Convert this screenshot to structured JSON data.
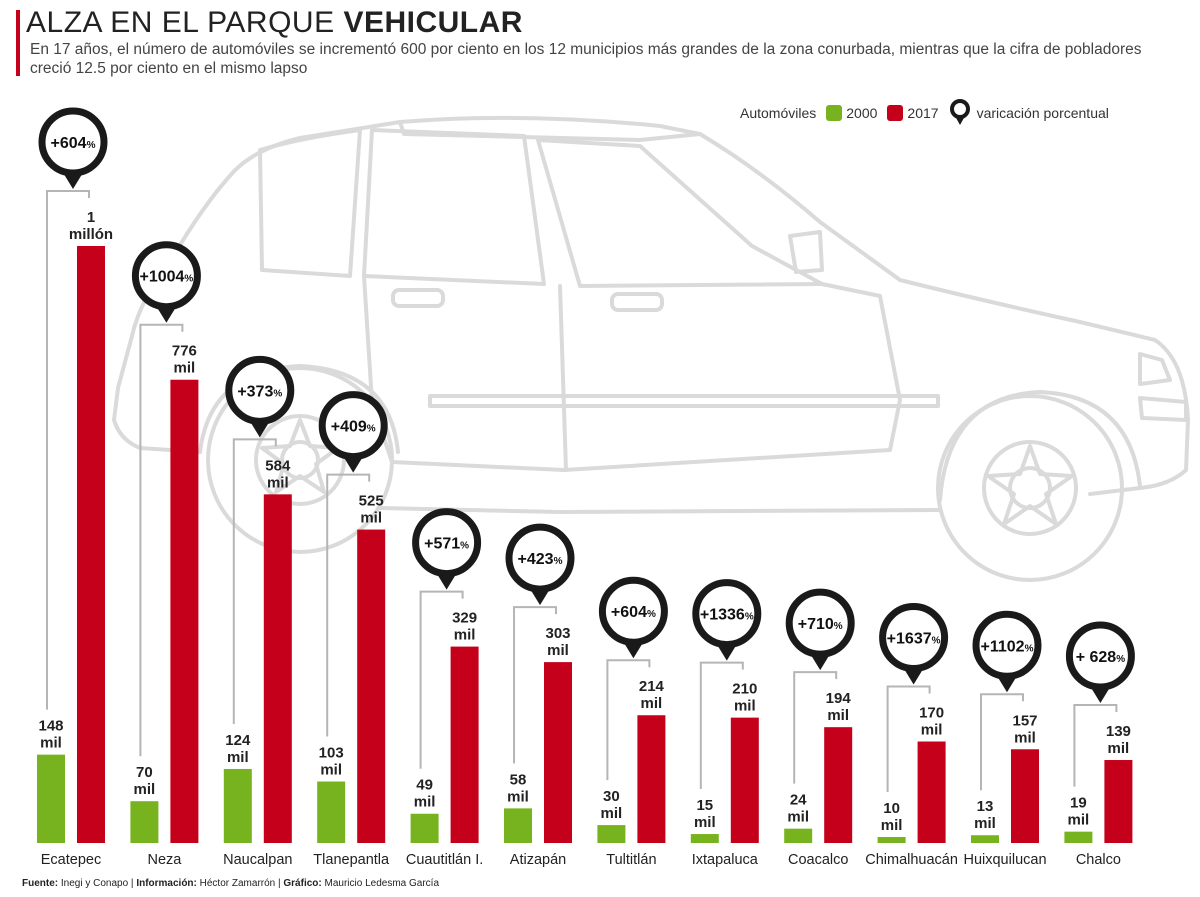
{
  "header": {
    "title_light": "ALZA EN EL PARQUE ",
    "title_bold": "VEHICULAR",
    "subtitle": "En 17 años, el número de automóviles se incrementó 600 por ciento en los 12 municipios más grandes de la zona conurbada, mientras que la cifra de pobladores creció 12.5 por ciento en el mismo lapso"
  },
  "legend": {
    "prefix": "Automóviles",
    "item_2000": "2000",
    "item_2017": "2017",
    "item_variation": "varicación porcentual"
  },
  "footer": {
    "source_label": "Fuente:",
    "source_text": " Inegi y Conapo | ",
    "info_label": "Información:",
    "info_text": " Héctor Zamarrón | ",
    "graphic_label": "Gráfico:",
    "graphic_text": " Mauricio Ledesma García"
  },
  "colors": {
    "green": "#77b31e",
    "red": "#c4001a",
    "pin": "#1a1a1a",
    "car": "#dadada"
  },
  "chart_data": {
    "type": "bar",
    "title": "ALZA EN EL PARQUE VEHICULAR",
    "categories": [
      "Ecatepec",
      "Neza",
      "Naucalpan",
      "Tlanepantla",
      "Cuautitlán I.",
      "Atizapán",
      "Tultitlán",
      "Ixtapaluca",
      "Coacalco",
      "Chimalhuacán",
      "Huixquilucan",
      "Chalco"
    ],
    "series": [
      {
        "name": "2000",
        "values": [
          148,
          70,
          124,
          103,
          49,
          58,
          30,
          15,
          24,
          10,
          13,
          19
        ],
        "labels": [
          [
            "148",
            "mil"
          ],
          [
            "70",
            "mil"
          ],
          [
            "124",
            "mil"
          ],
          [
            "103",
            "mil"
          ],
          [
            "49",
            "mil"
          ],
          [
            "58",
            "mil"
          ],
          [
            "30",
            "mil"
          ],
          [
            "15",
            "mil"
          ],
          [
            "24",
            "mil"
          ],
          [
            "10",
            "mil"
          ],
          [
            "13",
            "mil"
          ],
          [
            "19",
            "mil"
          ]
        ]
      },
      {
        "name": "2017",
        "values": [
          1000,
          776,
          584,
          525,
          329,
          303,
          214,
          210,
          194,
          170,
          157,
          139
        ],
        "labels": [
          [
            "1",
            "millón"
          ],
          [
            "776",
            "mil"
          ],
          [
            "584",
            "mil"
          ],
          [
            "525",
            "mil"
          ],
          [
            "329",
            "mil"
          ],
          [
            "303",
            "mil"
          ],
          [
            "214",
            "mil"
          ],
          [
            "210",
            "mil"
          ],
          [
            "194",
            "mil"
          ],
          [
            "170",
            "mil"
          ],
          [
            "157",
            "mil"
          ],
          [
            "139",
            "mil"
          ]
        ]
      }
    ],
    "variation": [
      [
        "+604",
        "%"
      ],
      [
        "+1004",
        "%"
      ],
      [
        "+373",
        "%"
      ],
      [
        "+409",
        "%"
      ],
      [
        "+571",
        "%"
      ],
      [
        "+423",
        "%"
      ],
      [
        "+604",
        "%"
      ],
      [
        "+1336",
        "%"
      ],
      [
        "+710",
        "%"
      ],
      [
        "+1637",
        "%"
      ],
      [
        "+1102",
        "%"
      ],
      [
        "+ 628",
        "%"
      ]
    ],
    "unit": "miles de automóviles",
    "ylim": [
      0,
      1000
    ],
    "grid": false,
    "legend_position": "top-right"
  }
}
